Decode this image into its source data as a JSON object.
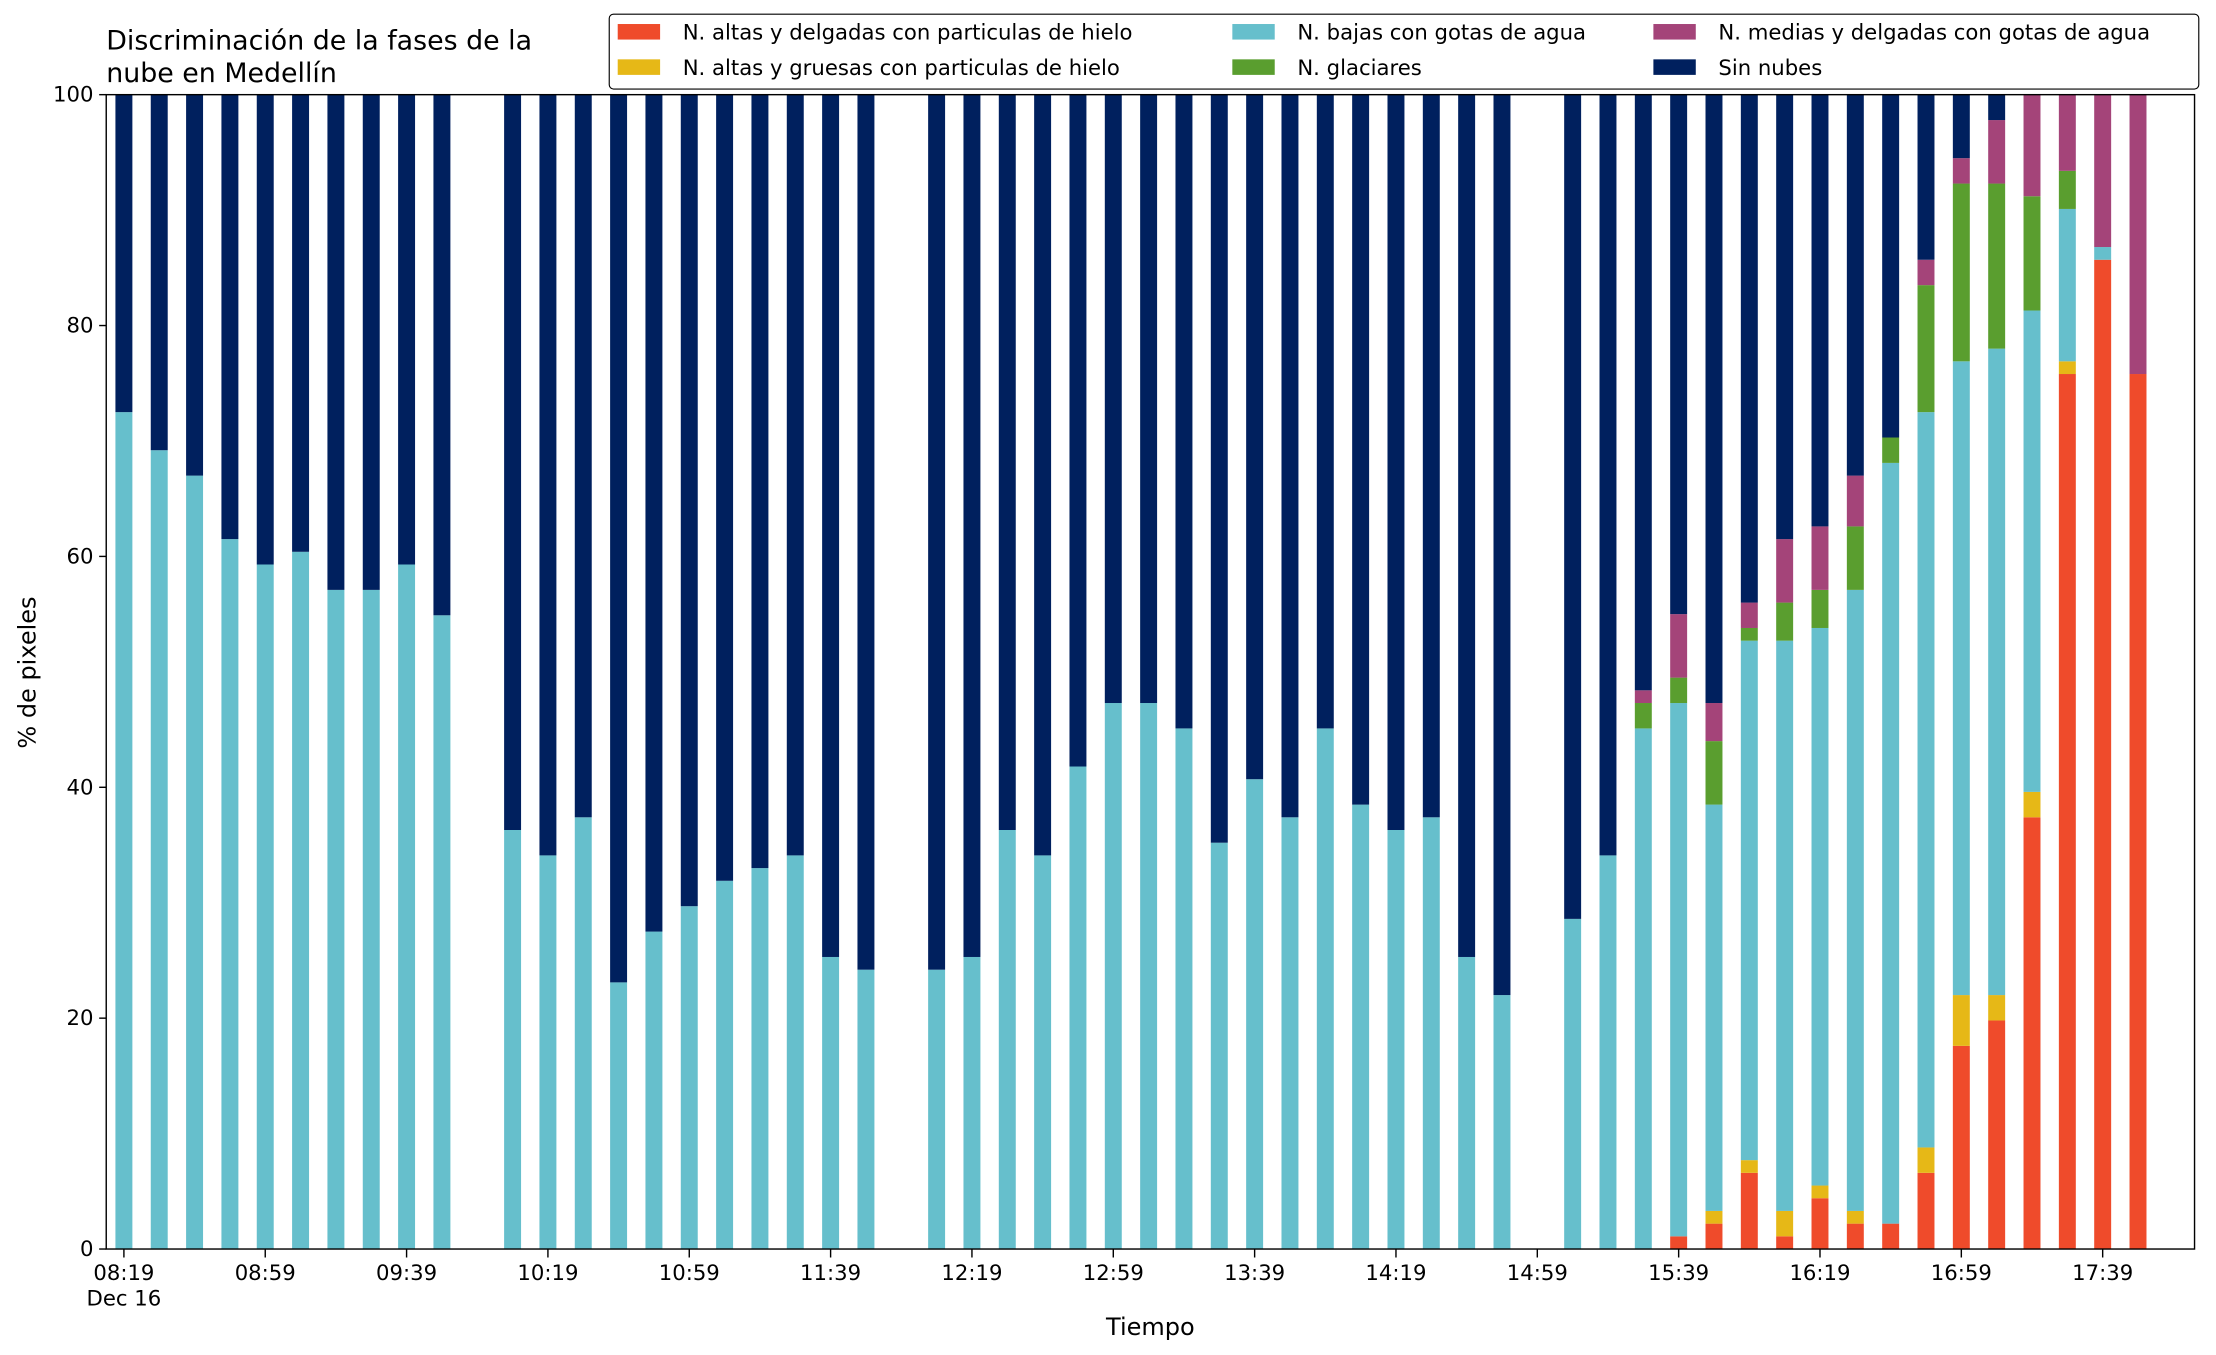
{
  "chart_data": {
    "type": "stacked_bar",
    "title": [
      "Discriminación de la fases de la",
      "nube en Medellín"
    ],
    "xlabel": "Tiempo",
    "ylabel": "% de pixeles",
    "x": [
      "08:19",
      "08:29",
      "08:39",
      "08:49",
      "08:59",
      "09:09",
      "09:19",
      "09:29",
      "09:39",
      "09:49",
      "10:09",
      "10:19",
      "10:29",
      "10:39",
      "10:49",
      "10:59",
      "11:09",
      "11:19",
      "11:29",
      "11:39",
      "11:49",
      "12:09",
      "12:19",
      "12:29",
      "12:39",
      "12:49",
      "12:59",
      "13:09",
      "13:19",
      "13:29",
      "13:39",
      "13:49",
      "13:59",
      "14:09",
      "14:19",
      "14:29",
      "14:39",
      "14:49",
      "15:09",
      "15:19",
      "15:29",
      "15:39",
      "15:49",
      "15:59",
      "16:09",
      "16:19",
      "16:29",
      "16:39",
      "16:49",
      "16:59",
      "17:09",
      "17:19",
      "17:29",
      "17:39",
      "17:49"
    ],
    "xlim": [
      "08:14",
      "18:05"
    ],
    "xticks": [
      "08:19",
      "08:59",
      "09:39",
      "10:19",
      "10:59",
      "11:39",
      "12:19",
      "12:59",
      "13:39",
      "14:19",
      "14:59",
      "15:39",
      "16:19",
      "16:59",
      "17:39"
    ],
    "x_date_label": "Dec 16",
    "ylim": [
      0,
      100
    ],
    "yticks": [
      0,
      20,
      40,
      60,
      80,
      100
    ],
    "series": [
      {
        "name": "N. altas y delgadas con particulas de hielo",
        "color": "#ef4b2b",
        "values": [
          0,
          0,
          0,
          0,
          0,
          0,
          0,
          0,
          0,
          0,
          0,
          0,
          0,
          0,
          0,
          0,
          0,
          0,
          0,
          0,
          0,
          0,
          0,
          0,
          0,
          0,
          0,
          0,
          0,
          0,
          0,
          0,
          0,
          0,
          0,
          0,
          0,
          0,
          0,
          0,
          0,
          1.1,
          2.2,
          6.6,
          1.1,
          4.4,
          2.2,
          2.2,
          6.6,
          17.6,
          19.8,
          37.4,
          75.8,
          85.7,
          75.8
        ]
      },
      {
        "name": "N. altas y gruesas con particulas de hielo",
        "color": "#e6b817",
        "values": [
          0,
          0,
          0,
          0,
          0,
          0,
          0,
          0,
          0,
          0,
          0,
          0,
          0,
          0,
          0,
          0,
          0,
          0,
          0,
          0,
          0,
          0,
          0,
          0,
          0,
          0,
          0,
          0,
          0,
          0,
          0,
          0,
          0,
          0,
          0,
          0,
          0,
          0,
          0,
          0,
          0,
          0,
          1.1,
          1.1,
          2.2,
          1.1,
          1.1,
          0,
          2.2,
          4.4,
          2.2,
          2.2,
          1.1,
          0,
          0
        ]
      },
      {
        "name": "N. bajas con gotas de agua",
        "color": "#66bfcc",
        "values": [
          72.5,
          69.2,
          67,
          61.5,
          59.3,
          60.4,
          57.1,
          57.1,
          59.3,
          54.9,
          36.3,
          34.1,
          37.4,
          23.1,
          27.5,
          29.7,
          31.9,
          33,
          34.1,
          25.3,
          24.2,
          24.2,
          25.3,
          36.3,
          34.1,
          41.8,
          47.3,
          47.3,
          45.1,
          35.2,
          40.7,
          37.4,
          45.1,
          38.5,
          36.3,
          37.4,
          25.3,
          22,
          28.6,
          34.1,
          45.1,
          46.2,
          35.2,
          45,
          49.4,
          48.3,
          53.8,
          65.9,
          63.7,
          54.9,
          56,
          41.7,
          13.2,
          1.1,
          0
        ]
      },
      {
        "name": "N. glaciares",
        "color": "#5a9e2f",
        "values": [
          0,
          0,
          0,
          0,
          0,
          0,
          0,
          0,
          0,
          0,
          0,
          0,
          0,
          0,
          0,
          0,
          0,
          0,
          0,
          0,
          0,
          0,
          0,
          0,
          0,
          0,
          0,
          0,
          0,
          0,
          0,
          0,
          0,
          0,
          0,
          0,
          0,
          0,
          0,
          0,
          2.2,
          2.2,
          5.5,
          1.1,
          3.3,
          3.3,
          5.5,
          2.2,
          11,
          15.4,
          14.3,
          9.9,
          3.3,
          0,
          0
        ]
      },
      {
        "name": "N. medias y delgadas con gotas de agua",
        "color": "#a44479",
        "values": [
          0,
          0,
          0,
          0,
          0,
          0,
          0,
          0,
          0,
          0,
          0,
          0,
          0,
          0,
          0,
          0,
          0,
          0,
          0,
          0,
          0,
          0,
          0,
          0,
          0,
          0,
          0,
          0,
          0,
          0,
          0,
          0,
          0,
          0,
          0,
          0,
          0,
          0,
          0,
          0,
          1.1,
          5.5,
          3.3,
          2.2,
          5.5,
          5.5,
          4.4,
          0,
          2.2,
          2.2,
          5.5,
          8.8,
          6.6,
          13.2,
          24.2
        ]
      },
      {
        "name": "Sin nubes",
        "color": "#00205e",
        "values": [
          27.5,
          30.8,
          33,
          38.5,
          40.7,
          39.6,
          42.9,
          42.9,
          40.7,
          45.1,
          63.7,
          65.9,
          62.6,
          76.9,
          72.5,
          70.3,
          68.1,
          67,
          65.9,
          74.7,
          75.8,
          75.8,
          74.7,
          63.7,
          65.9,
          58.2,
          52.7,
          52.7,
          54.9,
          64.8,
          59.3,
          62.6,
          54.9,
          61.5,
          63.7,
          62.6,
          74.7,
          78,
          71.4,
          65.9,
          51.6,
          45,
          52.7,
          44,
          38.5,
          37.4,
          33,
          29.7,
          14.3,
          5.5,
          2.2,
          0,
          0,
          0,
          0
        ]
      }
    ]
  }
}
